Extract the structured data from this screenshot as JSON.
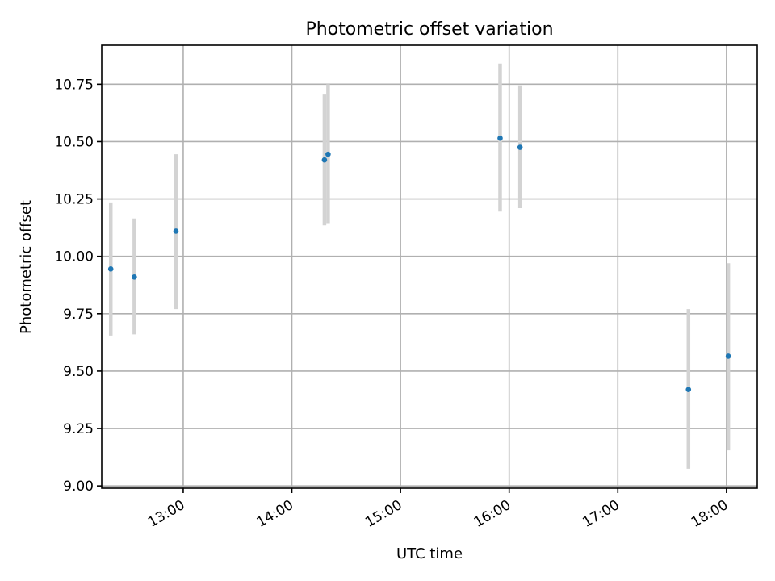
{
  "chart_data": {
    "type": "scatter",
    "title": "Photometric offset variation",
    "xlabel": "UTC time",
    "ylabel": "Photometric offset",
    "xlim": [
      "12:15",
      "18:17"
    ],
    "ylim": [
      8.99,
      10.92
    ],
    "x_ticks": [
      "13:00",
      "14:00",
      "15:00",
      "16:00",
      "17:00",
      "18:00"
    ],
    "y_ticks": [
      "9.00",
      "9.25",
      "9.50",
      "9.75",
      "10.00",
      "10.25",
      "10.50",
      "10.75"
    ],
    "grid": true,
    "points": [
      {
        "time": "12:20",
        "y": 9.945,
        "err_low": 9.655,
        "err_high": 10.235
      },
      {
        "time": "12:33",
        "y": 9.91,
        "err_low": 9.66,
        "err_high": 10.165
      },
      {
        "time": "12:56",
        "y": 10.11,
        "err_low": 9.77,
        "err_high": 10.445
      },
      {
        "time": "14:18",
        "y": 10.42,
        "err_low": 10.135,
        "err_high": 10.705
      },
      {
        "time": "14:20",
        "y": 10.445,
        "err_low": 10.145,
        "err_high": 10.75
      },
      {
        "time": "15:55",
        "y": 10.515,
        "err_low": 10.195,
        "err_high": 10.84
      },
      {
        "time": "16:06",
        "y": 10.475,
        "err_low": 10.21,
        "err_high": 10.745
      },
      {
        "time": "17:39",
        "y": 9.42,
        "err_low": 9.075,
        "err_high": 9.77
      },
      {
        "time": "18:01",
        "y": 9.565,
        "err_low": 9.155,
        "err_high": 9.97
      }
    ],
    "colors": {
      "point": "#1f77b4",
      "errorbar": "#d3d3d3",
      "grid": "#b0b0b0"
    }
  }
}
